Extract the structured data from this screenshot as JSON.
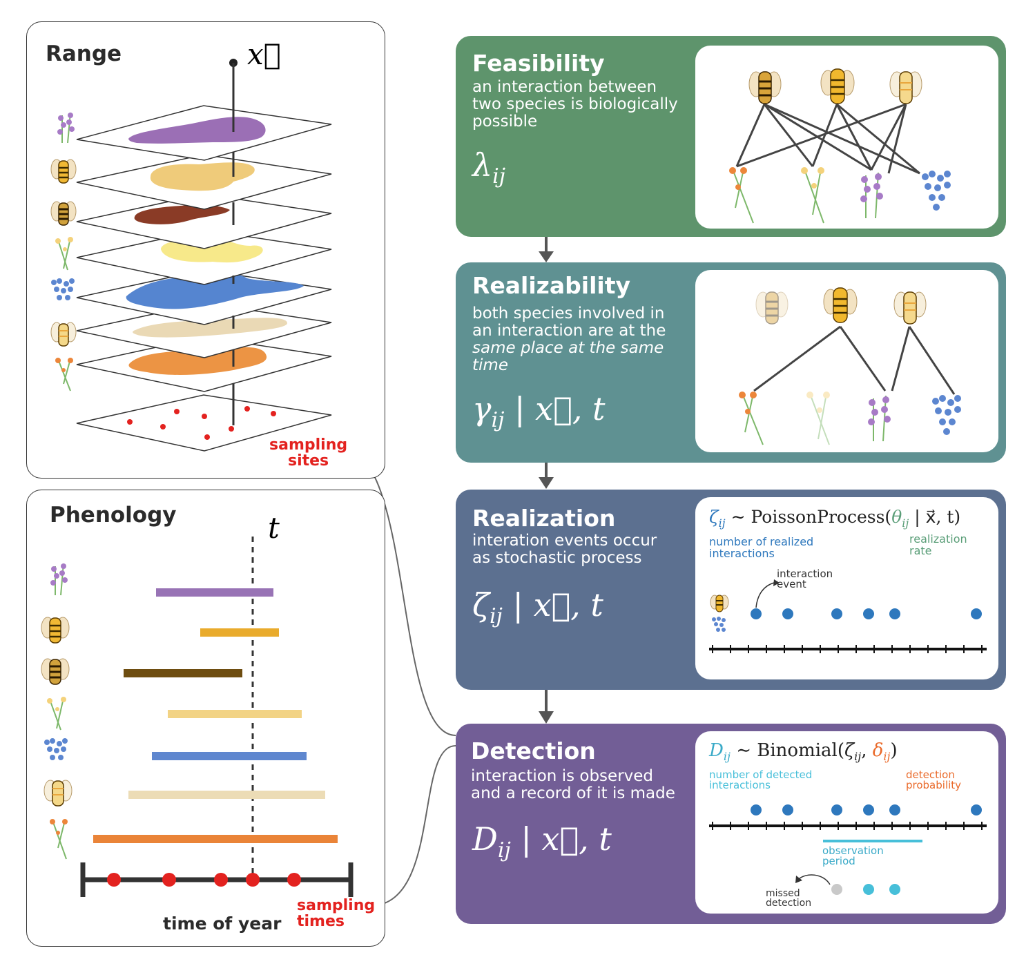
{
  "range_panel": {
    "title": "Range",
    "location_symbol": "x⃗",
    "sampling_label_line1": "sampling",
    "sampling_label_line2": "sites"
  },
  "phenology_panel": {
    "title": "Phenology",
    "time_symbol": "t",
    "axis_label": "time of year",
    "sampling_label_line1": "sampling",
    "sampling_label_line2": "times"
  },
  "steps": {
    "feasibility": {
      "title": "Feasibility",
      "desc_line1": "an interaction between",
      "desc_line2": "two species is biologically",
      "desc_line3": "possible",
      "formula": "λ",
      "formula_sub": "ij"
    },
    "realizability": {
      "title": "Realizability",
      "desc_line1": "both species involved in",
      "desc_line2": "an interaction are at the",
      "desc_line3": "same place at the same",
      "desc_line4": "time",
      "formula_main": "γ",
      "formula_sub": "ij",
      "formula_rest": " | x⃗, t"
    },
    "realization": {
      "title": "Realization",
      "desc_line1": "interation events occur",
      "desc_line2": "as stochastic process",
      "formula_main": "ζ",
      "formula_sub": "ij",
      "formula_rest": " | x⃗, t",
      "eq_zeta": "ζ",
      "eq_zeta_sub": "ij",
      "eq_middle": " ∼ PoissonProcess(",
      "eq_theta": "θ",
      "eq_theta_sub": "ij",
      "eq_end": " | x⃗, t)",
      "label_number_line1": "number of realized",
      "label_number_line2": "interactions",
      "label_rate_line1": "realization",
      "label_rate_line2": "rate",
      "label_event_line1": "interaction",
      "label_event_line2": "event"
    },
    "detection": {
      "title": "Detection",
      "desc_line1": "interaction is observed",
      "desc_line2": "and a record of it is made",
      "formula_main": "D",
      "formula_sub": "ij",
      "formula_rest": " | x⃗, t",
      "eq_d": "D",
      "eq_d_sub": "ij",
      "eq_middle": " ∼ Binomial(",
      "eq_zeta": "ζ",
      "eq_zeta_sub": "ij",
      "eq_comma": ", ",
      "eq_delta": "δ",
      "eq_delta_sub": "ij",
      "eq_end": ")",
      "label_number_line1": "number of detected",
      "label_number_line2": "interactions",
      "label_prob_line1": "detection",
      "label_prob_line2": "probability",
      "label_period_line1": "observation",
      "label_period_line2": "period",
      "label_missed_line1": "missed",
      "label_missed_line2": "detection"
    }
  },
  "colors": {
    "feasibility": "#5e946c",
    "realizability": "#5f9192",
    "realization": "#5c7090",
    "detection": "#725e96",
    "lavender": "#9b6fb5",
    "bee_gold": "#e8ac2a",
    "bee_brown": "#7a4f10",
    "yellow_flower": "#f4d27b",
    "blue": "#5c86d0",
    "pale": "#ead9b0",
    "orange": "#ec863a",
    "sampling_red": "#e3221f",
    "event_blue": "#2e78bd",
    "obs_cyan": "#47bfd9",
    "rate_green": "#5a9e78",
    "delta_orange": "#ea6a2a"
  }
}
